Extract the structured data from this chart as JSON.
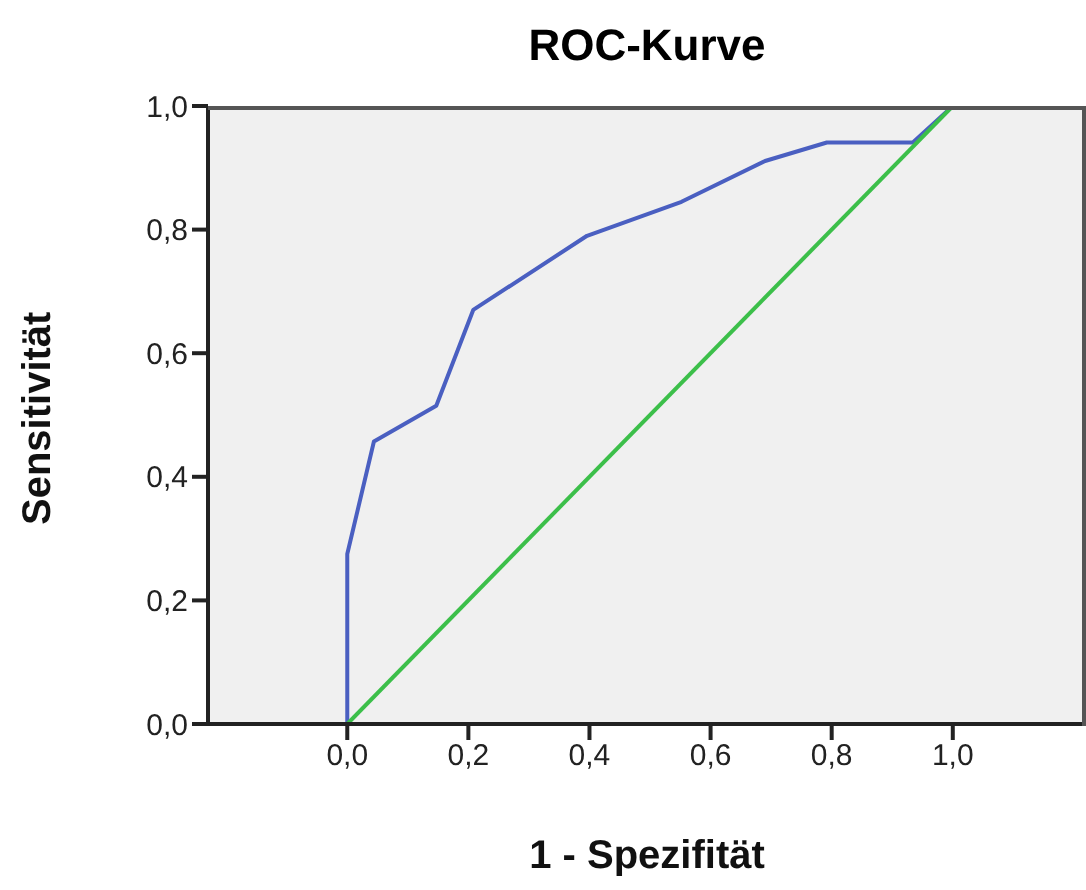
{
  "chart_data": {
    "type": "line",
    "title": "ROC-Kurve",
    "xlabel": "1 - Spezifität",
    "ylabel": "Sensitivität",
    "xlim": [
      -0.23,
      1.22
    ],
    "ylim": [
      0,
      1
    ],
    "xticks": [
      {
        "value": 0,
        "label": "0,0"
      },
      {
        "value": 0.2,
        "label": "0,2"
      },
      {
        "value": 0.4,
        "label": "0,4"
      },
      {
        "value": 0.6,
        "label": "0,6"
      },
      {
        "value": 0.8,
        "label": "0,8"
      },
      {
        "value": 1,
        "label": "1,0"
      }
    ],
    "yticks": [
      {
        "value": 0,
        "label": "0,0"
      },
      {
        "value": 0.2,
        "label": "0,2"
      },
      {
        "value": 0.4,
        "label": "0,4"
      },
      {
        "value": 0.6,
        "label": "0,6"
      },
      {
        "value": 0.8,
        "label": "0,8"
      },
      {
        "value": 1,
        "label": "1,0"
      }
    ],
    "grid": false,
    "marker": "none",
    "line_style": "solid",
    "series": [
      {
        "color": "#4a5fc1",
        "x": [
          0,
          0,
          0.044,
          0.147,
          0.208,
          0.396,
          0.552,
          0.69,
          0.792,
          0.934,
          1
        ],
        "values": [
          0,
          0.275,
          0.457,
          0.515,
          0.67,
          0.79,
          0.845,
          0.911,
          0.941,
          0.941,
          1
        ]
      },
      {
        "color": "#3cbf4a",
        "x": [
          0,
          1
        ],
        "values": [
          0,
          1
        ]
      }
    ]
  }
}
